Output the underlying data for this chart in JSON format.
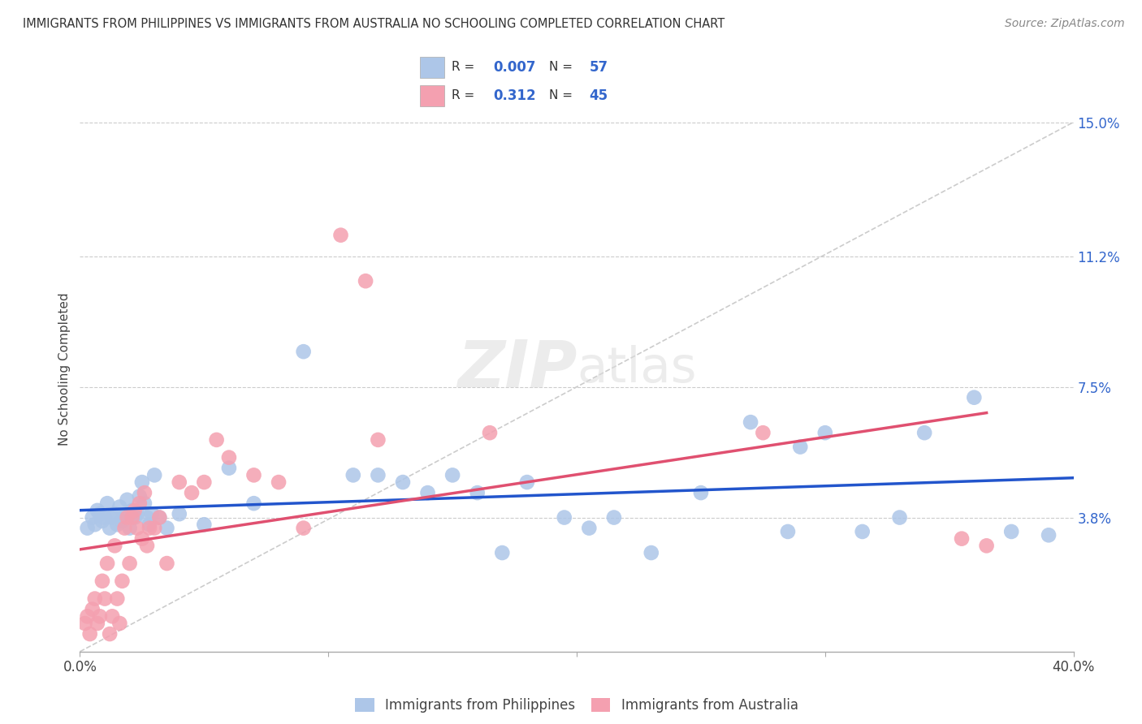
{
  "title": "IMMIGRANTS FROM PHILIPPINES VS IMMIGRANTS FROM AUSTRALIA NO SCHOOLING COMPLETED CORRELATION CHART",
  "source": "Source: ZipAtlas.com",
  "ylabel": "No Schooling Completed",
  "ytick_vals": [
    3.8,
    7.5,
    11.2,
    15.0
  ],
  "xlim": [
    0.0,
    40.0
  ],
  "ylim": [
    0.0,
    16.0
  ],
  "legend_label1": "Immigrants from Philippines",
  "legend_label2": "Immigrants from Australia",
  "r1": "0.007",
  "n1": "57",
  "r2": "0.312",
  "n2": "45",
  "color1": "#adc6e8",
  "color2": "#f4a0b0",
  "line1_color": "#2255cc",
  "line2_color": "#e05070",
  "diagonal_color": "#cccccc",
  "watermark_zip": "ZIP",
  "watermark_atlas": "atlas",
  "philippines_x": [
    0.3,
    0.5,
    0.6,
    0.7,
    0.8,
    0.9,
    1.0,
    1.1,
    1.2,
    1.3,
    1.4,
    1.5,
    1.6,
    1.7,
    1.8,
    1.9,
    2.0,
    2.1,
    2.2,
    2.3,
    2.4,
    2.5,
    2.6,
    2.7,
    2.8,
    2.9,
    3.0,
    3.2,
    3.5,
    4.0,
    5.0,
    6.0,
    7.0,
    9.0,
    11.0,
    12.0,
    13.0,
    14.0,
    15.0,
    16.0,
    17.0,
    18.0,
    19.5,
    20.5,
    21.5,
    23.0,
    25.0,
    27.0,
    28.5,
    29.0,
    30.0,
    31.5,
    33.0,
    34.0,
    36.0,
    37.5,
    39.0
  ],
  "philippines_y": [
    3.5,
    3.8,
    3.6,
    4.0,
    3.9,
    3.7,
    3.8,
    4.2,
    3.5,
    3.8,
    3.9,
    3.6,
    4.1,
    3.7,
    3.8,
    4.3,
    3.5,
    4.0,
    3.8,
    3.9,
    4.4,
    4.8,
    4.2,
    3.8,
    3.6,
    3.9,
    5.0,
    3.8,
    3.5,
    3.9,
    3.6,
    5.2,
    4.2,
    8.5,
    5.0,
    5.0,
    4.8,
    4.5,
    5.0,
    4.5,
    2.8,
    4.8,
    3.8,
    3.5,
    3.8,
    2.8,
    4.5,
    6.5,
    3.4,
    5.8,
    6.2,
    3.4,
    3.8,
    6.2,
    7.2,
    3.4,
    3.3
  ],
  "australia_x": [
    0.2,
    0.3,
    0.4,
    0.5,
    0.6,
    0.7,
    0.8,
    0.9,
    1.0,
    1.1,
    1.2,
    1.3,
    1.4,
    1.5,
    1.6,
    1.7,
    1.8,
    1.9,
    2.0,
    2.1,
    2.2,
    2.3,
    2.4,
    2.5,
    2.6,
    2.7,
    2.8,
    3.0,
    3.2,
    3.5,
    4.0,
    4.5,
    5.0,
    5.5,
    6.0,
    7.0,
    8.0,
    9.0,
    10.5,
    11.5,
    12.0,
    16.5,
    27.5,
    35.5,
    36.5
  ],
  "australia_y": [
    0.8,
    1.0,
    0.5,
    1.2,
    1.5,
    0.8,
    1.0,
    2.0,
    1.5,
    2.5,
    0.5,
    1.0,
    3.0,
    1.5,
    0.8,
    2.0,
    3.5,
    3.8,
    2.5,
    3.8,
    4.0,
    3.5,
    4.2,
    3.2,
    4.5,
    3.0,
    3.5,
    3.5,
    3.8,
    2.5,
    4.8,
    4.5,
    4.8,
    6.0,
    5.5,
    5.0,
    4.8,
    3.5,
    11.8,
    10.5,
    6.0,
    6.2,
    6.2,
    3.2,
    3.0
  ]
}
